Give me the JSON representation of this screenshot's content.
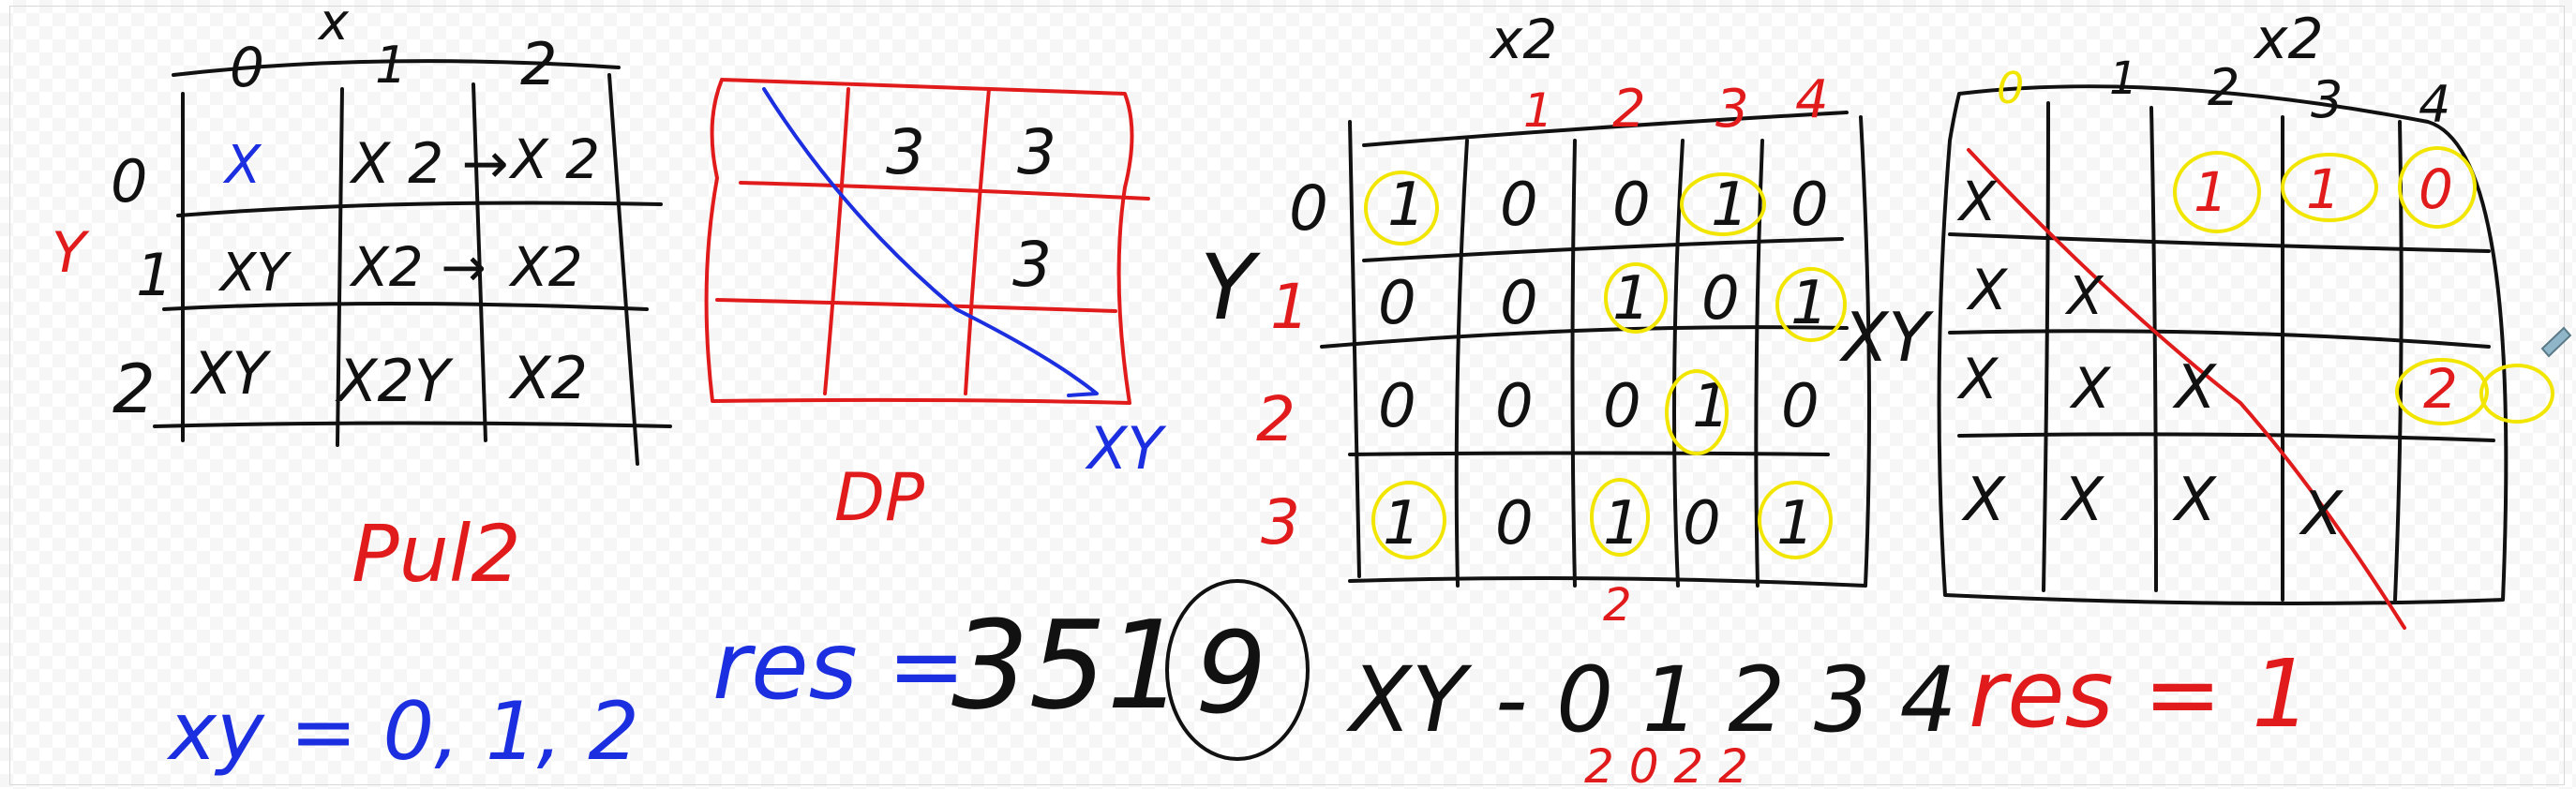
{
  "colors": {
    "ink_black": "#111111",
    "ink_red": "#e11b1b",
    "ink_blue": "#1b2fe0",
    "ink_yellow": "#f2e600"
  },
  "grid1": {
    "x_label": "x",
    "y_label": "Y",
    "col_headers": [
      "0",
      "1",
      "2"
    ],
    "row_headers": [
      "0",
      "1",
      "2"
    ],
    "cells": [
      [
        "X",
        "X 2 →",
        "X 2"
      ],
      [
        "XY",
        "X2 →",
        "X2"
      ],
      [
        "XY",
        "X2Y",
        "X2"
      ]
    ],
    "note": "Pul2"
  },
  "grid2": {
    "cells": [
      "3",
      "3",
      "3"
    ],
    "caption": "DP",
    "diag_label": "XY"
  },
  "grid3": {
    "x_label": "x2",
    "y_label": "Y",
    "col_headers": [
      "1",
      "2",
      "3",
      "4"
    ],
    "row_headers": [
      "0",
      "1",
      "2",
      "3"
    ],
    "cells": [
      [
        "1",
        "0",
        "0",
        "1",
        "0"
      ],
      [
        "0",
        "0",
        "1",
        "0",
        "1"
      ],
      [
        "0",
        "0",
        "0",
        "1",
        "0"
      ],
      [
        "1",
        "0",
        "1",
        "0",
        "1"
      ]
    ],
    "below_label": "2",
    "side_label": "XY"
  },
  "grid4": {
    "x_label": "x2",
    "col_headers": [
      "0",
      "1",
      "2",
      "3",
      "4"
    ],
    "top_row": [
      "1",
      "1",
      "0"
    ],
    "cells": [
      [
        "X",
        "X",
        "",
        "",
        ""
      ],
      [
        "X",
        "X",
        "X",
        "",
        "2"
      ],
      [
        "X",
        "X",
        "X",
        "X",
        ""
      ]
    ]
  },
  "bottom": {
    "xy_list": "xy = 0, 1, 2",
    "res1_label": "res =",
    "res1_value": "351",
    "res1_circled": "9",
    "xy_row": "XY - 0 1 2 3 4",
    "xy_row_under": "2 0 2 2",
    "res2": "res = 1"
  }
}
